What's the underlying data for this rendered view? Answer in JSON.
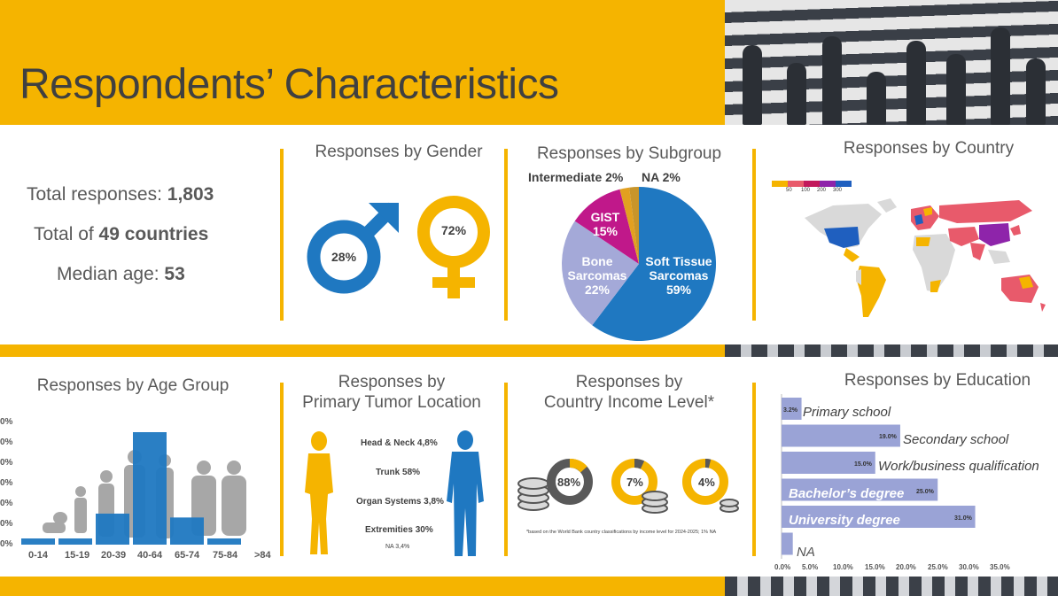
{
  "title": "Respondents’ Characteristics",
  "stats": {
    "total_responses_label": "Total responses: ",
    "total_responses_value": "1,803",
    "countries_prefix": "Total of ",
    "countries_value": "49 countries",
    "median_age_label": "Median age: ",
    "median_age_value": "53"
  },
  "gender": {
    "title": "Responses by Gender",
    "male_pct": "28%",
    "female_pct": "72%",
    "male_color": "#1f78c1",
    "female_color": "#f5b400"
  },
  "subgroup": {
    "title": "Responses by Subgroup",
    "intermediate_label": "Intermediate 2%",
    "na_label": "NA 2%",
    "gist_label": "GIST",
    "gist_pct": "15%",
    "bone_label1": "Bone",
    "bone_label2": "Sarcomas",
    "bone_pct": "22%",
    "soft_label1": "Soft Tissue",
    "soft_label2": "Sarcomas",
    "soft_pct": "59%"
  },
  "country": {
    "title": "Responses by Country",
    "legend_ticks": [
      "50",
      "100",
      "200",
      "300"
    ],
    "legend_colors": [
      "#f5b400",
      "#e85a6b",
      "#c2185b",
      "#8e24aa",
      "#1f5fbf"
    ]
  },
  "age": {
    "title": "Responses by Age Group",
    "categories": [
      "0-14",
      "15-19",
      "20-39",
      "40-64",
      "65-74",
      "75-84",
      ">84"
    ],
    "values": [
      1.0,
      0.7,
      8.0,
      29.0,
      7.0,
      1.0,
      0
    ],
    "ytick_labels": [
      "0%",
      "0%",
      "0%",
      "0%",
      "0%",
      "0%",
      "0%"
    ],
    "bar_color": "#1f78c1"
  },
  "tumor": {
    "title_line1": "Responses by",
    "title_line2": "Primary Tumor Location",
    "items": [
      "Head & Neck 4,8%",
      "Trunk 58%",
      "Organ Systems 3,8%",
      "Extremities 30%"
    ],
    "na": "NA 3,4%"
  },
  "income": {
    "title_line1": "Responses by",
    "title_line2": "Country Income Level*",
    "values": [
      "88%",
      "7%",
      "4%"
    ],
    "footnote": "*based on the World Bank country classifications by income level for 2024-2025; 1% NA"
  },
  "education": {
    "title": "Responses by Education",
    "items": [
      {
        "label": "Primary school",
        "value": "3.2%",
        "pct": 3.2
      },
      {
        "label": "Secondary school",
        "value": "19.0%",
        "pct": 19.0
      },
      {
        "label": "Work/business qualification",
        "value": "15.0%",
        "pct": 15.0
      },
      {
        "label": "Bachelor’s degree",
        "value": "25.0%",
        "pct": 25.0
      },
      {
        "label": "University degree",
        "value": "31.0%",
        "pct": 31.0
      },
      {
        "label": "NA",
        "value": "",
        "pct": 1.8
      }
    ],
    "xticks": [
      "0.0%",
      "5.0%",
      "10.0%",
      "15.0%",
      "20.0%",
      "25.0%",
      "30.0%",
      "35.0%"
    ],
    "bar_color": "#9aa3d6"
  }
}
